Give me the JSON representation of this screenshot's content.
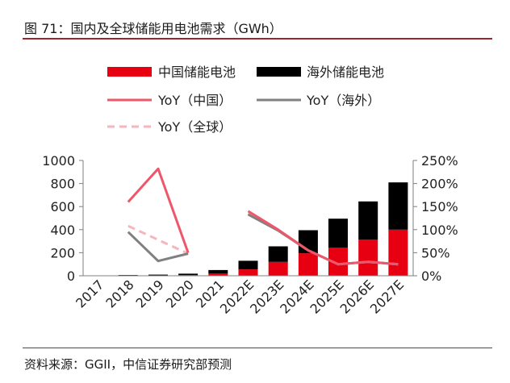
{
  "figure": {
    "title": "图 71：国内及全球储能用电池需求（GWh）",
    "source": "资料来源：GGII，中信证券研究部预测"
  },
  "chart_data": {
    "type": "bar",
    "stacked": true,
    "categories": [
      "2017",
      "2018",
      "2019",
      "2020",
      "2021",
      "2022E",
      "2023E",
      "2024E",
      "2025E",
      "2026E",
      "2027E"
    ],
    "series": [
      {
        "name": "中国储能电池",
        "kind": "bar",
        "axis": "left",
        "color": "#e60012",
        "values": [
          0,
          1,
          2,
          6,
          20,
          55,
          120,
          195,
          245,
          315,
          400
        ]
      },
      {
        "name": "海外储能电池",
        "kind": "bar",
        "axis": "left",
        "color": "#000000",
        "values": [
          3,
          5,
          8,
          12,
          30,
          75,
          135,
          200,
          250,
          330,
          410
        ]
      },
      {
        "name": "YoY（中国）",
        "kind": "line",
        "axis": "right",
        "color": "#f0566a",
        "dash": "solid",
        "values": [
          null,
          1.6,
          2.32,
          0.5,
          null,
          1.4,
          1.0,
          0.55,
          0.25,
          0.3,
          0.25
        ]
      },
      {
        "name": "YoY（海外）",
        "kind": "line",
        "axis": "right",
        "color": "#808080",
        "dash": "solid",
        "values": [
          null,
          0.95,
          0.32,
          0.48,
          null,
          1.33,
          0.98,
          0.55,
          0.25,
          0.3,
          0.25
        ]
      },
      {
        "name": "YoY（全球）",
        "kind": "line",
        "axis": "right",
        "color": "#f6b6bd",
        "dash": "dashed",
        "values": [
          null,
          1.08,
          0.78,
          0.48,
          null,
          1.35,
          0.98,
          0.55,
          0.25,
          0.3,
          0.25
        ]
      }
    ],
    "y_left": {
      "min": 0,
      "max": 1000,
      "ticks": [
        "0",
        "200",
        "400",
        "600",
        "800",
        "1000"
      ]
    },
    "y_right": {
      "min": 0,
      "max": 2.5,
      "ticks": [
        "0%",
        "50%",
        "100%",
        "150%",
        "200%",
        "250%"
      ]
    },
    "legend_position": "top",
    "grid": false
  }
}
